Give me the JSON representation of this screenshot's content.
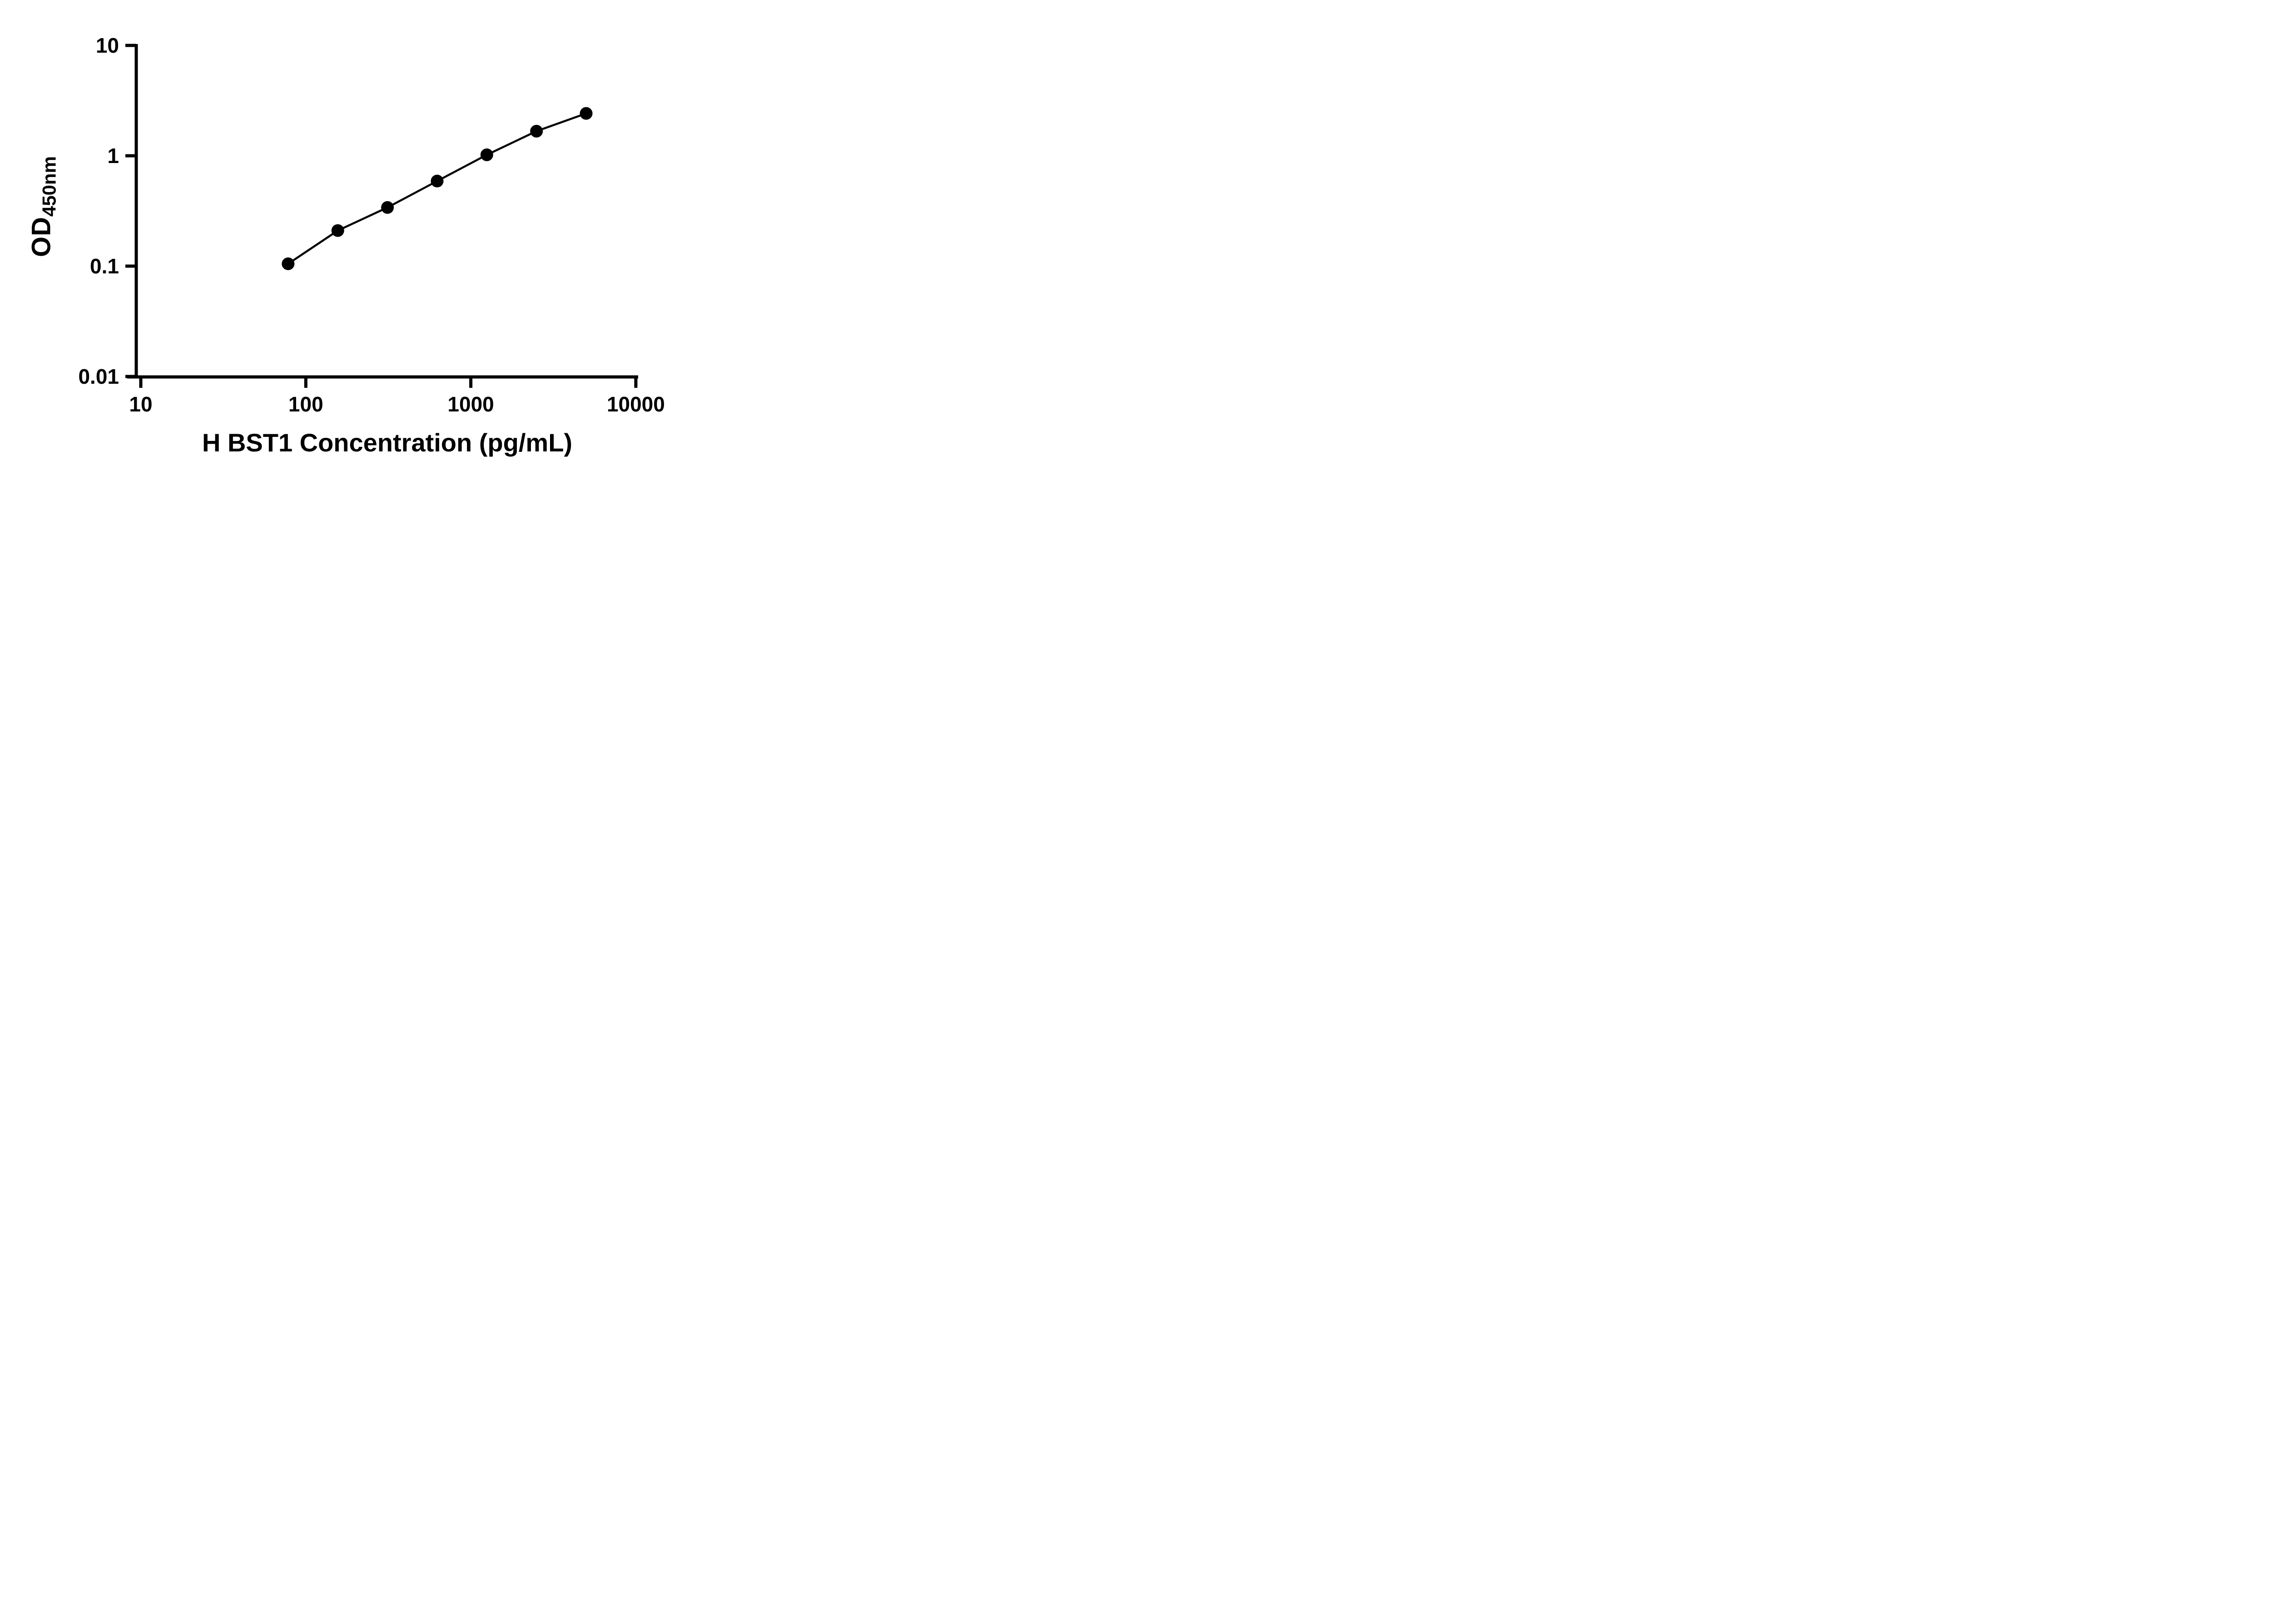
{
  "figure": {
    "background_color": "#ffffff",
    "axis_color": "#000000",
    "marker_color": "#000000",
    "line_color": "#000000"
  },
  "chart_data": {
    "type": "scatter",
    "x_scale": "log",
    "y_scale": "log",
    "x": [
      78.125,
      156.25,
      312.5,
      625,
      1250,
      2500,
      5000
    ],
    "y": [
      0.105,
      0.21,
      0.34,
      0.59,
      1.02,
      1.67,
      2.42
    ],
    "line": true,
    "marker": "circle",
    "title": "",
    "xlabel": "H BST1 Concentration (pg/mL)",
    "ylabel_main": "OD",
    "ylabel_sub": "450nm",
    "xlim": [
      10,
      10000
    ],
    "ylim": [
      0.01,
      10
    ],
    "x_ticks": [
      10,
      100,
      1000,
      10000
    ],
    "x_tick_labels": [
      "10",
      "100",
      "1000",
      "10000"
    ],
    "y_ticks": [
      0.01,
      0.1,
      1,
      10
    ],
    "y_tick_labels": [
      "0.01",
      "0.1",
      "1",
      "10"
    ],
    "grid": false,
    "legend": false
  }
}
